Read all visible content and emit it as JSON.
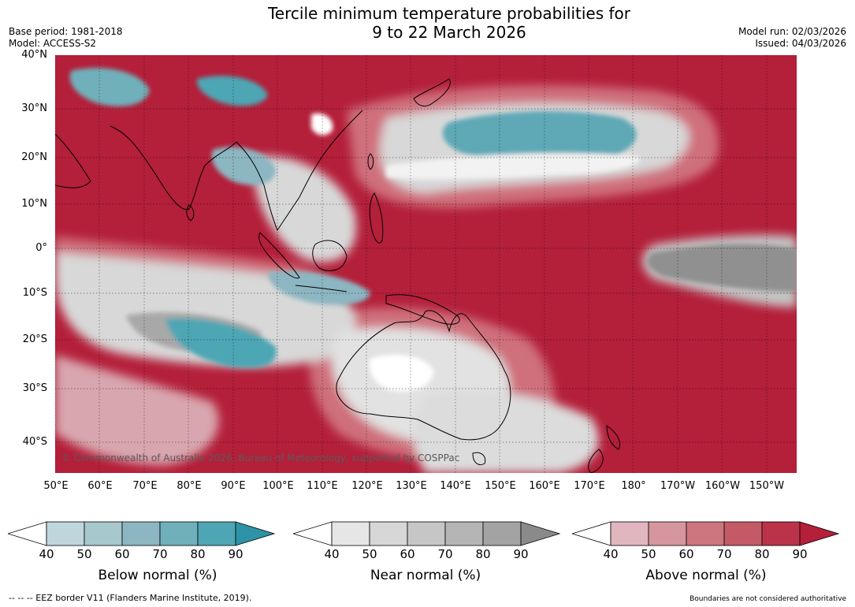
{
  "header": {
    "title_line1": "Tercile minimum temperature probabilities for",
    "title_line2": "9 to 22 March 2026",
    "base_period": "Base period: 1981-2018",
    "model": "Model: ACCESS-S2",
    "model_run": "Model run: 02/03/2026",
    "issued": "Issued: 04/03/2026"
  },
  "map": {
    "lat_labels": [
      "40°N",
      "30°N",
      "20°N",
      "10°N",
      "0°",
      "10°S",
      "20°S",
      "30°S",
      "40°S"
    ],
    "lon_labels": [
      "50°E",
      "60°E",
      "70°E",
      "80°E",
      "90°E",
      "100°E",
      "110°E",
      "120°E",
      "130°E",
      "140°E",
      "150°E",
      "160°E",
      "170°E",
      "180°",
      "170°W",
      "160°W",
      "150°W"
    ],
    "copyright": "© Commonwealth of Australia 2026, Bureau of Meteorology, supported by COSPPac",
    "colors": {
      "above": "#b41f3a",
      "near": "#d6d6d6",
      "below": "#3a9aab",
      "land_line": "#000000"
    }
  },
  "colorbars": [
    {
      "label": "Below normal (%)",
      "ticks": [
        "40",
        "50",
        "60",
        "70",
        "80",
        "90"
      ],
      "colors": [
        "#bfd6dc",
        "#a7c8cd",
        "#8cb6c1",
        "#6fb0ba",
        "#4ea6b4",
        "#2e93a6"
      ]
    },
    {
      "label": "Near normal (%)",
      "ticks": [
        "40",
        "50",
        "60",
        "70",
        "80",
        "90"
      ],
      "colors": [
        "#e6e6e6",
        "#d7d7d7",
        "#c6c6c6",
        "#b5b5b5",
        "#a3a3a3",
        "#8a8a8a"
      ]
    },
    {
      "label": "Above normal (%)",
      "ticks": [
        "40",
        "50",
        "60",
        "70",
        "80",
        "90"
      ],
      "colors": [
        "#e2b6be",
        "#d6969f",
        "#cd767f",
        "#c45a66",
        "#bb3348",
        "#b41f3a"
      ]
    }
  ],
  "footer": {
    "eez_note": "--  --  -- EEZ border V11 (Flanders Marine Institute, 2019).",
    "boundaries_note": "Boundaries are not considered authoritative"
  }
}
